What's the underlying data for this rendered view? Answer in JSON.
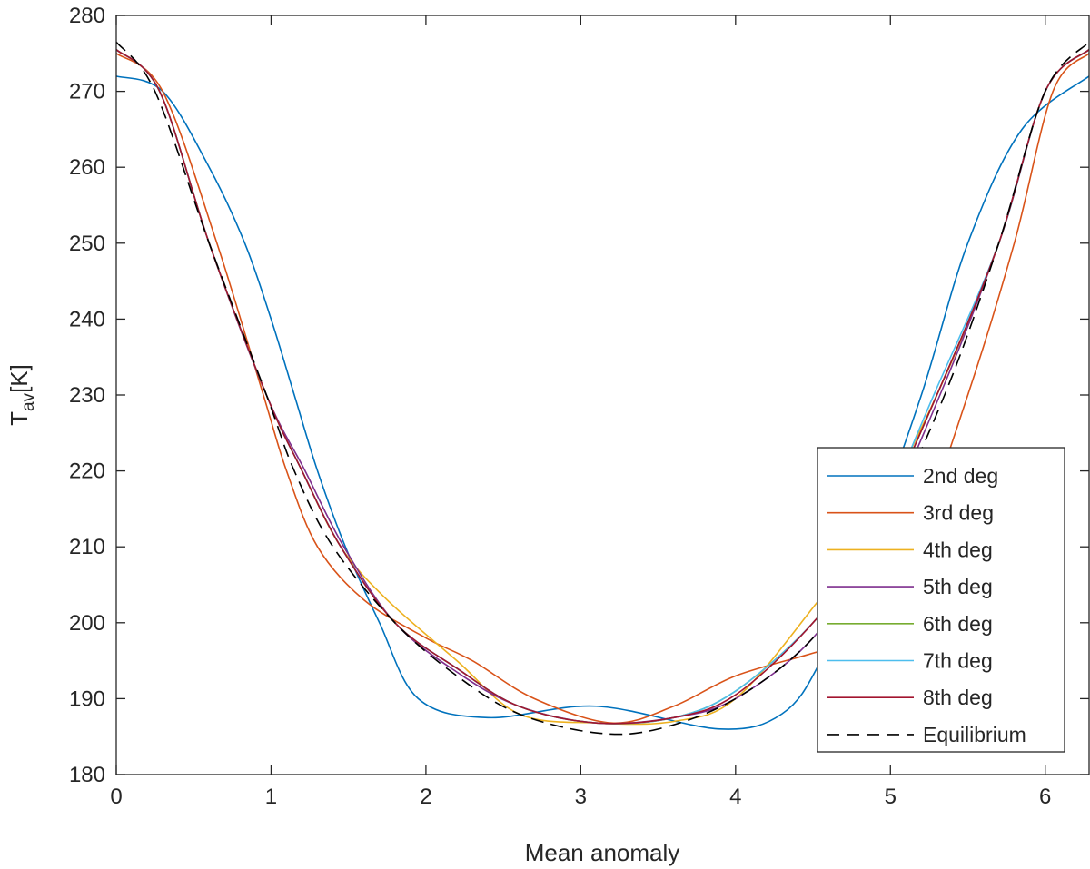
{
  "chart_data": {
    "type": "line",
    "xlabel": "Mean anomaly",
    "ylabel_main": "T",
    "ylabel_sub": "av",
    "ylabel_unit": "[K]",
    "xlim": [
      0,
      6.2832
    ],
    "ylim": [
      180,
      280
    ],
    "xticks": [
      "0",
      "1",
      "2",
      "3",
      "4",
      "5",
      "6"
    ],
    "yticks": [
      "180",
      "190",
      "200",
      "210",
      "220",
      "230",
      "240",
      "250",
      "260",
      "270",
      "280"
    ],
    "grid": false,
    "legend_position": "bottom-right",
    "series": [
      {
        "name": "2nd deg",
        "color": "#0072BD",
        "dash": false,
        "x": [
          0,
          0.3,
          0.6,
          0.83,
          1.0,
          1.15,
          1.3,
          1.48,
          1.7,
          1.95,
          2.4,
          3.1,
          3.9,
          4.3,
          4.55,
          4.85,
          5.2,
          5.5,
          5.85,
          6.2832
        ],
        "y": [
          272,
          270,
          260,
          250,
          240,
          230,
          220,
          210,
          200,
          190,
          187.5,
          189,
          186,
          188,
          195,
          210,
          230,
          250,
          265,
          272
        ]
      },
      {
        "name": "3rd deg",
        "color": "#D95319",
        "dash": false,
        "x": [
          0,
          0.3,
          0.65,
          0.95,
          1.1,
          1.3,
          1.6,
          2.0,
          2.3,
          2.7,
          3.2,
          3.6,
          4.0,
          4.5,
          4.8,
          5.15,
          5.5,
          5.8,
          6.05,
          6.2832
        ],
        "y": [
          275,
          270,
          250,
          230,
          220,
          210,
          203,
          198,
          195,
          190,
          186.8,
          189,
          193,
          196,
          198,
          210,
          230,
          250,
          270,
          275
        ]
      },
      {
        "name": "4th deg",
        "color": "#EDB120",
        "dash": false,
        "x": [
          0,
          0.28,
          0.6,
          0.97,
          1.2,
          1.45,
          1.75,
          2.2,
          2.6,
          3.1,
          3.6,
          4.0,
          4.5,
          4.85,
          5.3,
          5.7,
          6.0,
          6.2832
        ],
        "y": [
          275.5,
          270,
          250,
          230,
          220,
          210,
          203,
          195,
          188,
          186.8,
          187,
          190,
          202,
          212,
          230,
          250,
          270,
          275.5
        ]
      },
      {
        "name": "5th deg",
        "color": "#7E2F8E",
        "dash": false,
        "x": [
          0,
          0.28,
          0.6,
          0.97,
          1.22,
          1.47,
          1.8,
          2.2,
          2.6,
          3.1,
          3.6,
          4.0,
          4.5,
          4.88,
          5.32,
          5.7,
          6.0,
          6.2832
        ],
        "y": [
          275.5,
          270,
          250,
          230,
          220,
          210,
          200,
          193.5,
          189,
          186.8,
          187.5,
          190,
          198,
          210,
          230,
          250,
          270,
          275.5
        ]
      },
      {
        "name": "6th deg",
        "color": "#77AC30",
        "dash": false,
        "x": [
          0,
          0.28,
          0.6,
          0.97,
          1.2,
          1.45,
          1.8,
          2.2,
          2.6,
          3.1,
          3.6,
          4.0,
          4.5,
          4.85,
          5.3,
          5.7,
          6.0,
          6.2832
        ],
        "y": [
          275.5,
          270,
          250,
          230,
          220,
          210,
          200,
          194,
          189,
          186.8,
          187.5,
          191,
          200,
          210,
          230,
          250,
          270,
          275.5
        ]
      },
      {
        "name": "7th deg",
        "color": "#4DBEEE",
        "dash": false,
        "x": [
          0,
          0.28,
          0.6,
          0.97,
          1.2,
          1.45,
          1.8,
          2.2,
          2.6,
          3.1,
          3.6,
          4.0,
          4.5,
          4.85,
          5.28,
          5.7,
          6.0,
          6.2832
        ],
        "y": [
          275.5,
          270,
          250,
          230,
          220,
          210,
          200,
          194,
          189,
          186.8,
          187.5,
          191,
          200,
          210,
          230,
          250,
          270,
          275.5
        ]
      },
      {
        "name": "8th deg",
        "color": "#A2142F",
        "dash": false,
        "x": [
          0,
          0.28,
          0.6,
          0.97,
          1.2,
          1.45,
          1.8,
          2.2,
          2.6,
          3.1,
          3.6,
          4.0,
          4.5,
          4.85,
          5.3,
          5.7,
          6.0,
          6.2832
        ],
        "y": [
          275.5,
          270,
          250,
          230,
          220,
          210,
          200,
          194,
          189,
          186.8,
          187.5,
          190.5,
          200,
          210,
          230,
          250,
          270,
          275.5
        ]
      },
      {
        "name": "Equilibrium",
        "color": "#000000",
        "dash": true,
        "x": [
          0,
          0.25,
          0.6,
          0.97,
          1.15,
          1.4,
          1.8,
          2.2,
          2.6,
          3.1,
          3.5,
          4.0,
          4.5,
          4.9,
          5.35,
          5.7,
          6.0,
          6.2832
        ],
        "y": [
          276.5,
          270,
          250,
          230,
          220,
          210,
          200,
          193,
          188,
          185.5,
          186,
          190,
          198,
          210,
          230,
          250,
          270,
          276.5
        ]
      }
    ]
  }
}
